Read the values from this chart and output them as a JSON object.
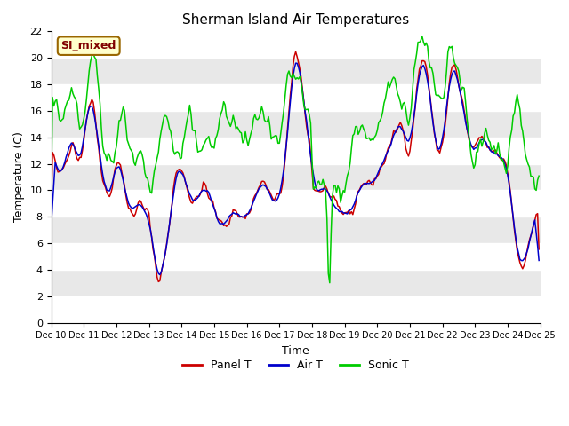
{
  "title": "Sherman Island Air Temperatures",
  "xlabel": "Time",
  "ylabel": "Temperature (C)",
  "ylim": [
    0,
    22
  ],
  "xlim": [
    0,
    360
  ],
  "background_color": "#ffffff",
  "plot_bg_color": "#ffffff",
  "band_colors": [
    "#ffffff",
    "#e8e8e8"
  ],
  "line_colors": {
    "panel": "#cc0000",
    "air": "#0000cc",
    "sonic": "#00cc00"
  },
  "line_width": 1.1,
  "tick_labels": [
    "Dec 10",
    "Dec 11",
    "Dec 12",
    "Dec 13",
    "Dec 14",
    "Dec 15",
    "Dec 16",
    "Dec 17",
    "Dec 18",
    "Dec 19",
    "Dec 20",
    "Dec 21",
    "Dec 22",
    "Dec 23",
    "Dec 24",
    "Dec 25"
  ],
  "tick_positions": [
    0,
    24,
    48,
    72,
    96,
    120,
    144,
    168,
    192,
    216,
    240,
    264,
    288,
    312,
    336,
    360
  ],
  "y_ticks": [
    0,
    2,
    4,
    6,
    8,
    10,
    12,
    14,
    16,
    18,
    20,
    22
  ],
  "label_box": {
    "text": "SI_mixed",
    "facecolor": "#ffffcc",
    "edgecolor": "#996600",
    "textcolor": "#800000",
    "fontsize": 9,
    "fontweight": "bold"
  },
  "legend_entries": [
    "Panel T",
    "Air T",
    "Sonic T"
  ],
  "legend_colors": [
    "#cc0000",
    "#0000cc",
    "#00cc00"
  ]
}
